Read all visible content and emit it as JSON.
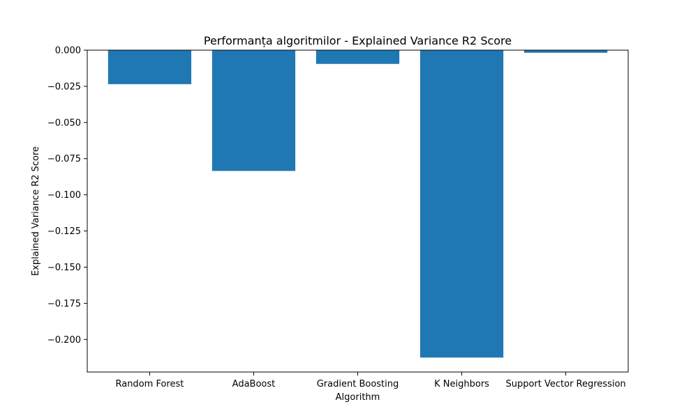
{
  "chart_data": {
    "type": "bar",
    "title": "Performanța algoritmilor - Explained Variance R2 Score",
    "xlabel": "Algorithm",
    "ylabel": "Explained Variance R2 Score",
    "categories": [
      "Random Forest",
      "AdaBoost",
      "Gradient Boosting",
      "K Neighbors",
      "Support Vector Regression"
    ],
    "values": [
      -0.0235,
      -0.0835,
      -0.0095,
      -0.2125,
      -0.0018
    ],
    "ylim": [
      -0.2225,
      0.0
    ],
    "yticks": [
      0.0,
      -0.025,
      -0.05,
      -0.075,
      -0.1,
      -0.125,
      -0.15,
      -0.175,
      -0.2
    ],
    "ytick_labels": [
      "0.000",
      "−0.025",
      "−0.050",
      "−0.075",
      "−0.100",
      "−0.125",
      "−0.150",
      "−0.175",
      "−0.200"
    ],
    "bar_color": "#1f77b4",
    "grid": false,
    "legend": false
  }
}
